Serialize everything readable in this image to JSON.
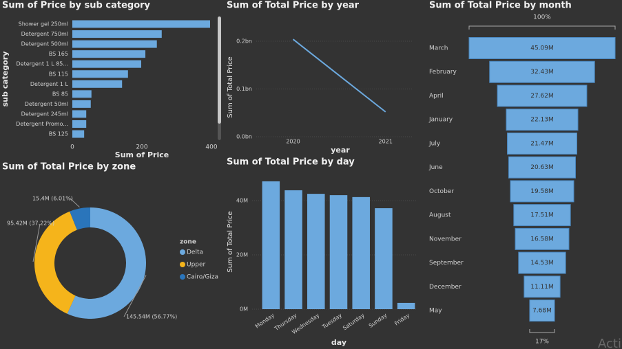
{
  "chart_data": [
    {
      "type": "bar",
      "orientation": "horizontal",
      "title": "Sum of Price by sub category",
      "x_label": "Sum of Price",
      "y_label": "sub category",
      "categories": [
        "Shower gel 250ml",
        "Detergent 750ml",
        "Detergent 500ml",
        "BS 165",
        "Detergent 1 L 85...",
        "BS 115",
        "Detergent 1 L",
        "BS 85",
        "Detergent 50ml",
        "Detergent 245ml",
        "Detergent Promo...",
        "BS 125"
      ],
      "values": [
        396,
        257,
        243,
        210,
        198,
        160,
        143,
        55,
        53,
        40,
        40,
        34
      ],
      "color": "#6ca9de",
      "xlim": [
        0,
        400
      ],
      "xticks": [
        0,
        200,
        400
      ],
      "grid": false
    },
    {
      "type": "line",
      "title": "Sum of Total Price by year",
      "x_label": "year",
      "y_label": "Sum of Total Price",
      "x": [
        2020,
        2021
      ],
      "values": [
        0.204,
        0.052
      ],
      "color": "#6ca9de",
      "xlim": [
        2019.4,
        2021.3
      ],
      "xticks": [
        2020,
        2021
      ],
      "ylim": [
        0,
        0.2
      ],
      "yticks": [
        {
          "value": 0,
          "label": "0.0bn"
        },
        {
          "value": 0.1,
          "label": "0.1bn"
        },
        {
          "value": 0.2,
          "label": "0.2bn"
        }
      ],
      "grid": true
    },
    {
      "type": "funnel",
      "title": "Sum of Total Price by month",
      "top_label": "100%",
      "bottom_label": "17%",
      "categories": [
        "March",
        "February",
        "April",
        "January",
        "July",
        "June",
        "October",
        "August",
        "November",
        "September",
        "December",
        "May"
      ],
      "values": [
        45.09,
        32.43,
        27.62,
        22.13,
        21.47,
        20.63,
        19.58,
        17.51,
        16.58,
        14.53,
        11.11,
        7.68
      ],
      "value_labels": [
        "45.09M",
        "32.43M",
        "27.62M",
        "22.13M",
        "21.47M",
        "20.63M",
        "19.58M",
        "17.51M",
        "16.58M",
        "14.53M",
        "11.11M",
        "7.68M"
      ],
      "color": "#6ca9de"
    },
    {
      "type": "donut",
      "title": "Sum of Total Price by zone",
      "legend_title": "zone",
      "categories": [
        "Delta",
        "Upper",
        "Cairo/Giza"
      ],
      "values": [
        145.54,
        95.42,
        15.4
      ],
      "value_labels": [
        "145.54M (56.77%)",
        "95.42M (37.22%)",
        "15.4M (6.01%)"
      ],
      "colors": [
        "#6ca9de",
        "#f5b41b",
        "#2a75bb"
      ]
    },
    {
      "type": "bar",
      "orientation": "vertical",
      "title": "Sum of Total Price by day",
      "x_label": "day",
      "y_label": "Sum of Total Price",
      "categories": [
        "Monday",
        "Thursday",
        "Wednesday",
        "Tuesday",
        "Saturday",
        "Sunday",
        "Friday"
      ],
      "values": [
        47.1,
        43.8,
        42.5,
        42.0,
        41.3,
        37.2,
        2.3
      ],
      "color": "#6ca9de",
      "ylim": [
        0,
        40
      ],
      "yticks": [
        {
          "value": 0,
          "label": "0M"
        },
        {
          "value": 20,
          "label": "20M"
        },
        {
          "value": 40,
          "label": "40M"
        }
      ],
      "grid": true
    }
  ],
  "watermark": "Acti"
}
